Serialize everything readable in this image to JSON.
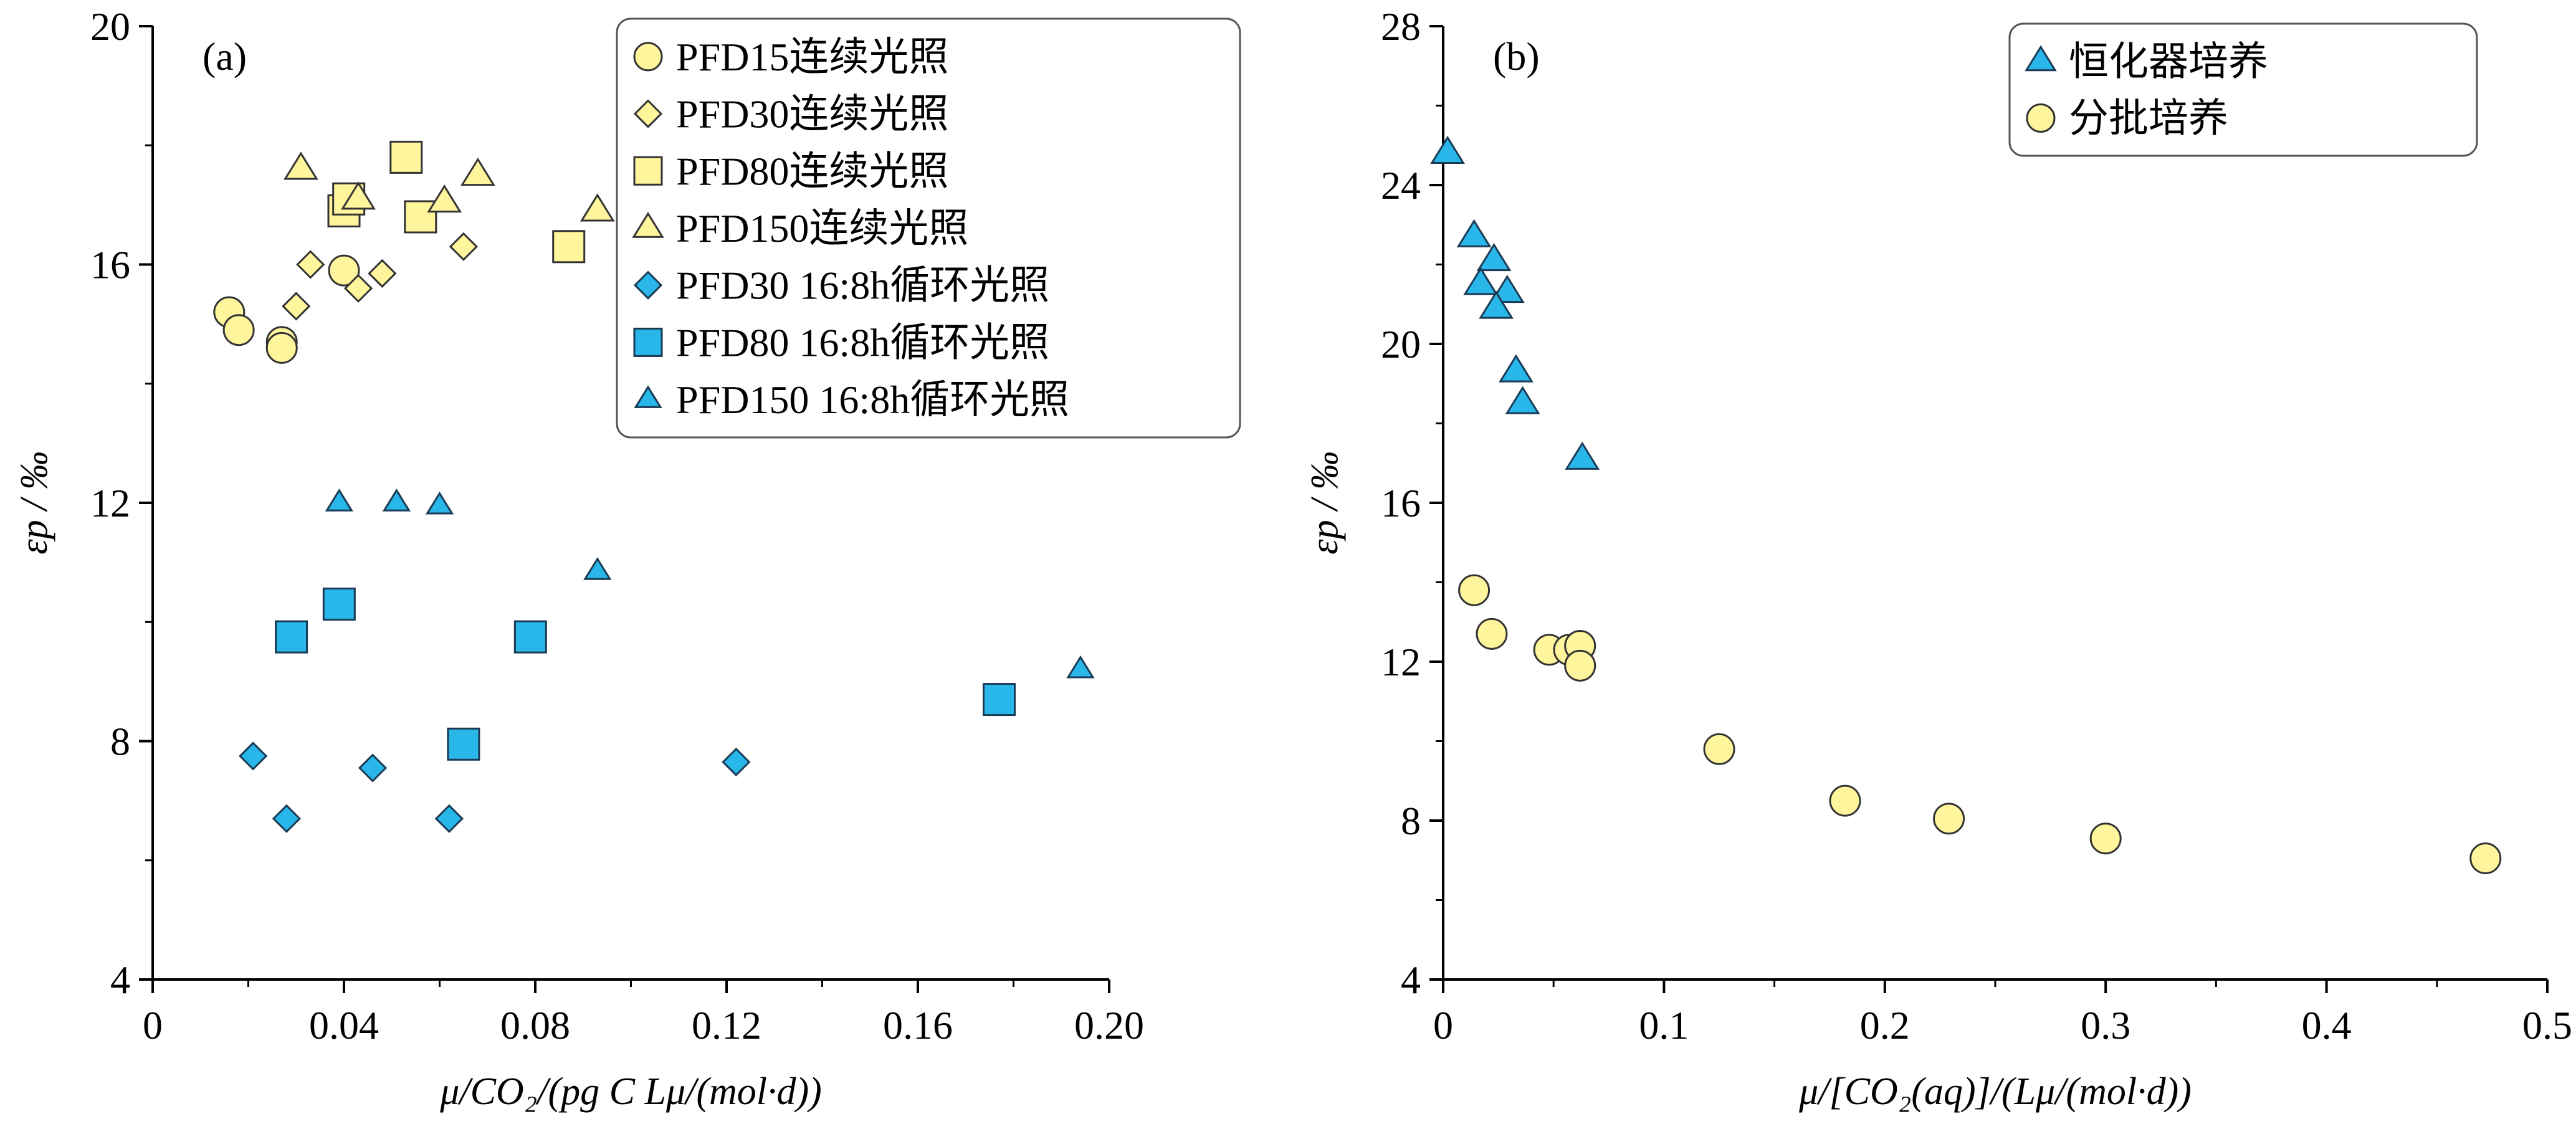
{
  "colors": {
    "yellow_fill": "#FFF59D",
    "yellow_edge": "#333333",
    "blue_fill": "#29B6E8",
    "blue_edge": "#1a3a55"
  },
  "chart_data": [
    {
      "type": "scatter",
      "panel_label": "(a)",
      "xlabel": "μ/CO₂/(pg C Lμ/(mol·d))",
      "ylabel": "εp / ‰",
      "xlim": [
        0,
        0.2
      ],
      "ylim": [
        4,
        20
      ],
      "x_ticks": [
        "0",
        "0.04",
        "0.08",
        "0.12",
        "0.16",
        "0.20"
      ],
      "y_ticks": [
        "4",
        "8",
        "12",
        "16",
        "20"
      ],
      "legend_position": "top-right",
      "series": [
        {
          "name": "PFD15连续光照",
          "marker": "circle",
          "color": "yellow",
          "points": [
            [
              0.016,
              15.2
            ],
            [
              0.018,
              14.9
            ],
            [
              0.027,
              14.7
            ],
            [
              0.027,
              14.6
            ],
            [
              0.04,
              15.9
            ]
          ]
        },
        {
          "name": "PFD30连续光照",
          "marker": "diamond",
          "color": "yellow",
          "points": [
            [
              0.03,
              15.3
            ],
            [
              0.033,
              16.0
            ],
            [
              0.043,
              15.6
            ],
            [
              0.048,
              15.85
            ],
            [
              0.065,
              16.3
            ]
          ]
        },
        {
          "name": "PFD80连续光照",
          "marker": "square",
          "color": "yellow",
          "points": [
            [
              0.04,
              16.9
            ],
            [
              0.041,
              17.1
            ],
            [
              0.053,
              17.8
            ],
            [
              0.056,
              16.8
            ],
            [
              0.087,
              16.3
            ]
          ]
        },
        {
          "name": "PFD150连续光照",
          "marker": "triangle",
          "color": "yellow",
          "points": [
            [
              0.031,
              17.6
            ],
            [
              0.043,
              17.1
            ],
            [
              0.061,
              17.05
            ],
            [
              0.068,
              17.5
            ],
            [
              0.093,
              16.9
            ]
          ]
        },
        {
          "name": "PFD30 16:8h循环光照",
          "marker": "diamond",
          "color": "blue",
          "points": [
            [
              0.021,
              7.75
            ],
            [
              0.028,
              6.7
            ],
            [
              0.046,
              7.55
            ],
            [
              0.062,
              6.7
            ],
            [
              0.122,
              7.65
            ]
          ]
        },
        {
          "name": "PFD80 16:8h循环光照",
          "marker": "square",
          "color": "blue",
          "points": [
            [
              0.029,
              9.75
            ],
            [
              0.039,
              10.3
            ],
            [
              0.065,
              7.95
            ],
            [
              0.079,
              9.75
            ],
            [
              0.177,
              8.7
            ]
          ]
        },
        {
          "name": "PFD150 16:8h循环光照",
          "marker": "triangle-small",
          "color": "blue",
          "points": [
            [
              0.039,
              12.0
            ],
            [
              0.051,
              12.0
            ],
            [
              0.06,
              11.95
            ],
            [
              0.093,
              10.85
            ],
            [
              0.194,
              9.2
            ]
          ]
        }
      ]
    },
    {
      "type": "scatter",
      "panel_label": "(b)",
      "xlabel": "μ/[CO₂(aq)]/(Lμ/(mol·d))",
      "ylabel": "εp / ‰",
      "xlim": [
        0,
        0.5
      ],
      "ylim": [
        4,
        28
      ],
      "x_ticks": [
        "0",
        "0.1",
        "0.2",
        "0.3",
        "0.4",
        "0.5"
      ],
      "y_ticks": [
        "4",
        "8",
        "12",
        "16",
        "20",
        "24",
        "28"
      ],
      "legend_position": "top-right",
      "series": [
        {
          "name": "恒化器培养",
          "marker": "triangle",
          "color": "blue",
          "points": [
            [
              0.002,
              24.8
            ],
            [
              0.014,
              22.7
            ],
            [
              0.023,
              22.1
            ],
            [
              0.017,
              21.5
            ],
            [
              0.029,
              21.3
            ],
            [
              0.024,
              20.9
            ],
            [
              0.033,
              19.3
            ],
            [
              0.036,
              18.5
            ],
            [
              0.063,
              17.1
            ]
          ]
        },
        {
          "name": "分批培养",
          "marker": "circle",
          "color": "yellow",
          "points": [
            [
              0.014,
              13.8
            ],
            [
              0.022,
              12.7
            ],
            [
              0.048,
              12.3
            ],
            [
              0.057,
              12.3
            ],
            [
              0.062,
              12.4
            ],
            [
              0.062,
              11.9
            ],
            [
              0.125,
              9.8
            ],
            [
              0.182,
              8.5
            ],
            [
              0.229,
              8.05
            ],
            [
              0.3,
              7.55
            ],
            [
              0.472,
              7.05
            ]
          ]
        }
      ]
    }
  ]
}
